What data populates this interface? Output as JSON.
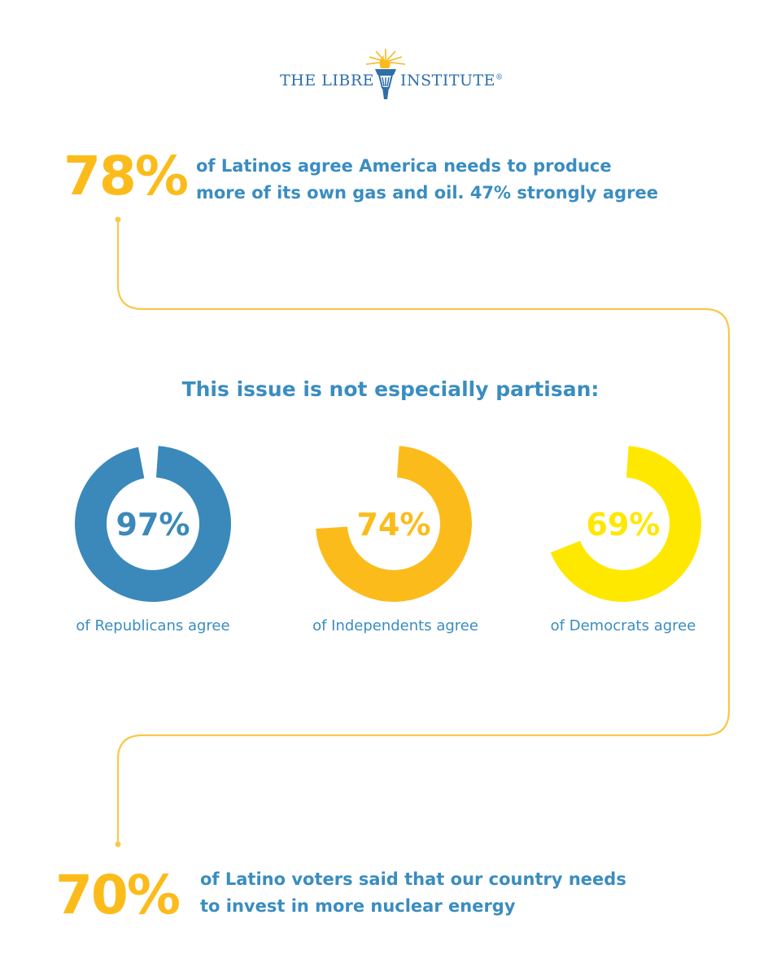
{
  "brand": {
    "left": "THE LIBRE",
    "right": "INSTITUTE",
    "registered": "®"
  },
  "stat_top": {
    "value": "78%",
    "line1": "of Latinos agree America needs to produce",
    "line2": "more of its own gas and oil. 47% strongly agree"
  },
  "headline": "This issue is not especially partisan:",
  "chart_data": {
    "type": "pie",
    "variant": "donut",
    "series": [
      {
        "label": "97%",
        "value": 97,
        "caption": "of Republicans agree",
        "color": "#3a89ba"
      },
      {
        "label": "74%",
        "value": 74,
        "caption": "of Independents agree",
        "color": "#fbbc1b"
      },
      {
        "label": "69%",
        "value": 69,
        "caption": "of Democrats agree",
        "color": "#ffe800"
      }
    ]
  },
  "stat_bottom": {
    "value": "70%",
    "line1": "of Latino voters said that our country needs",
    "line2": "to invest in more nuclear energy"
  },
  "colors": {
    "accent_yellow": "#fbbc1b",
    "text_blue": "#3a8dc0",
    "connector": "#f7c948"
  }
}
